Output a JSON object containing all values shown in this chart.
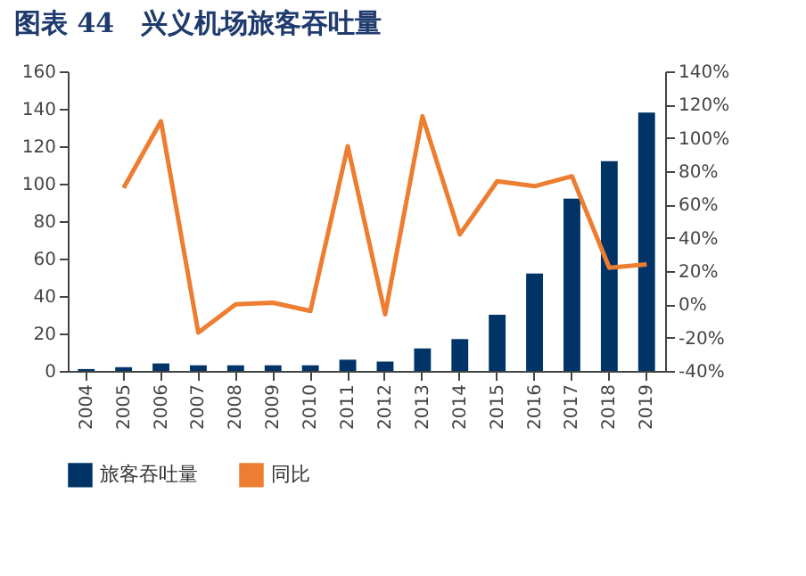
{
  "chart_data": {
    "type": "bar",
    "title": "图表 44　兴义机场旅客吞吐量",
    "categories": [
      "2004",
      "2005",
      "2006",
      "2007",
      "2008",
      "2009",
      "2010",
      "2011",
      "2012",
      "2013",
      "2014",
      "2015",
      "2016",
      "2017",
      "2018",
      "2019"
    ],
    "series": [
      {
        "name": "旅客吞吐量",
        "color": "#003366",
        "values": [
          1,
          2,
          4,
          3,
          3,
          3,
          3,
          6,
          5,
          12,
          17,
          30,
          52,
          92,
          112,
          138
        ]
      },
      {
        "name": "同比",
        "type": "line",
        "axis": "y2",
        "color": "#ed7d31",
        "values": [
          null,
          70,
          110,
          -17,
          0,
          1,
          -4,
          95,
          -6,
          113,
          42,
          74,
          71,
          77,
          22,
          24
        ]
      }
    ],
    "ylim": [
      0,
      160
    ],
    "yticks": [
      0,
      20,
      40,
      60,
      80,
      100,
      120,
      140,
      160
    ],
    "y2lim": [
      -40,
      140
    ],
    "y2ticks": [
      {
        "value": -40,
        "label": "-40%"
      },
      {
        "value": -20,
        "label": "-20%"
      },
      {
        "value": 0,
        "label": "0%"
      },
      {
        "value": 20,
        "label": "20%"
      },
      {
        "value": 40,
        "label": "40%"
      },
      {
        "value": 60,
        "label": "60%"
      },
      {
        "value": 80,
        "label": "80%"
      },
      {
        "value": 100,
        "label": "100%"
      },
      {
        "value": 120,
        "label": "120%"
      },
      {
        "value": 140,
        "label": "140%"
      }
    ],
    "legend": "bottom",
    "grid": false,
    "marker": "none",
    "line_style": "solid"
  }
}
